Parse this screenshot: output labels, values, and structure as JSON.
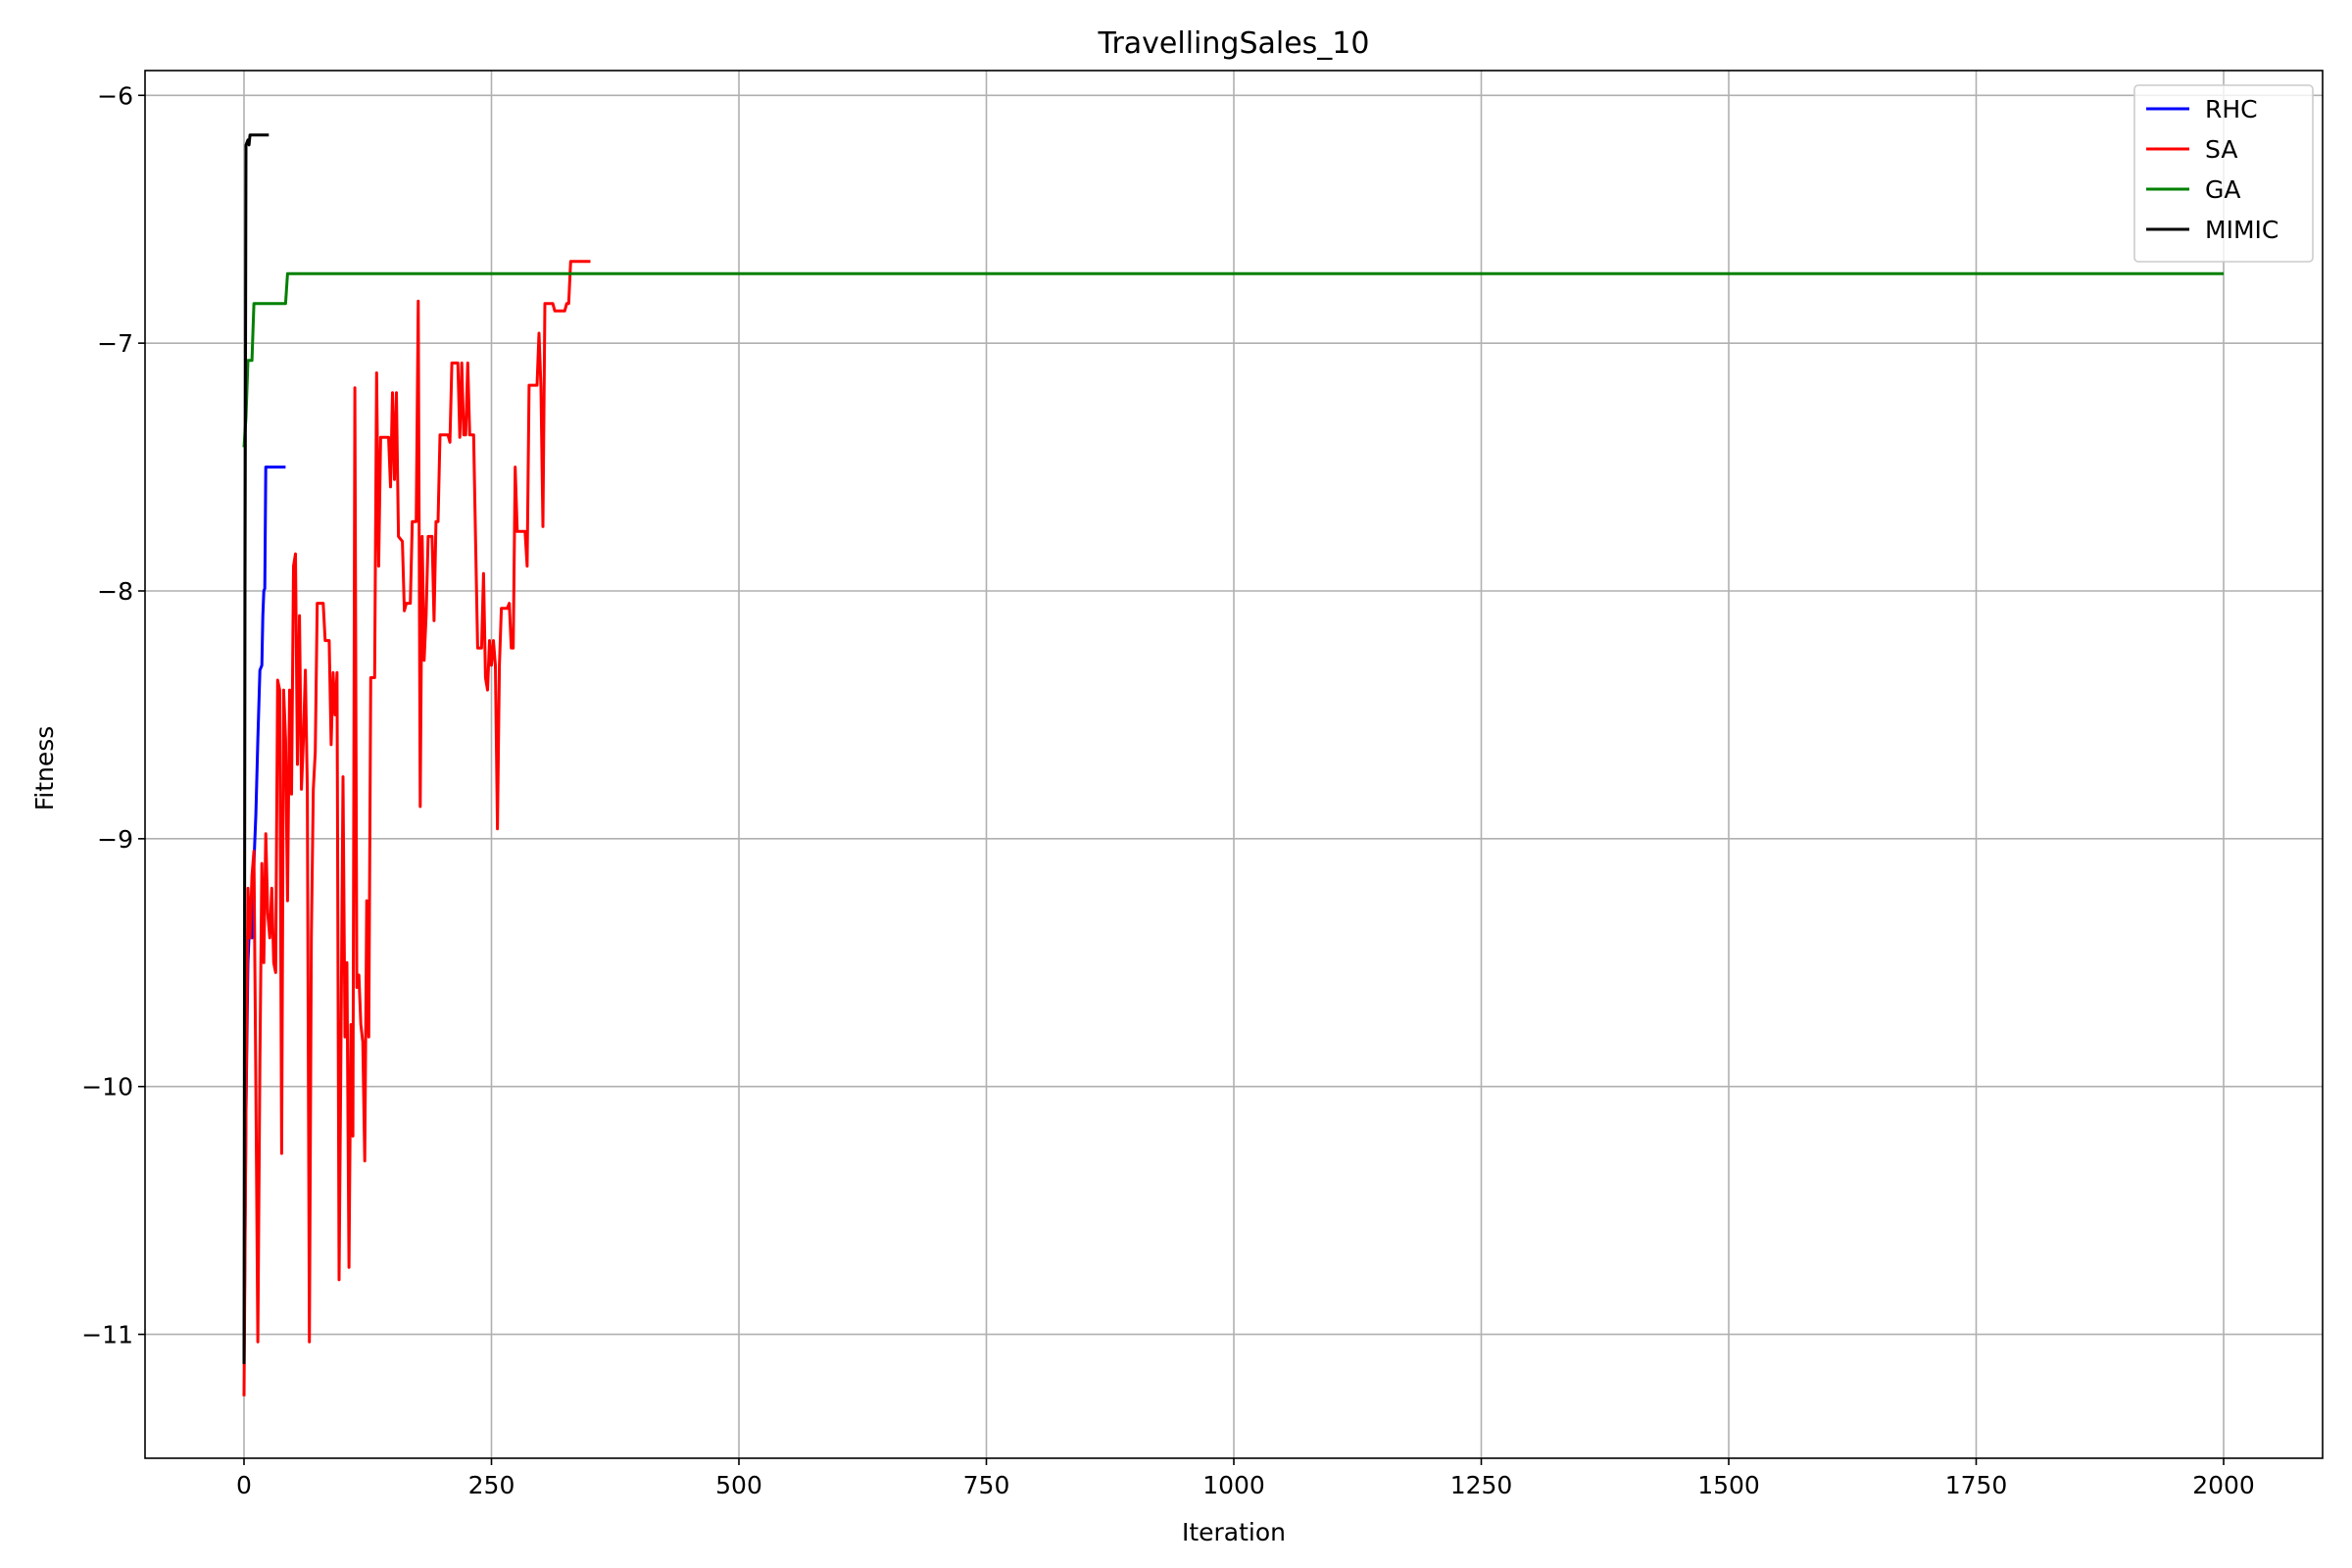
{
  "chart_data": {
    "type": "line",
    "title": "TravellingSales_10",
    "xlabel": "Iteration",
    "ylabel": "Fitness",
    "xlim": [
      -100,
      2100
    ],
    "ylim": [
      -11.5,
      -5.9
    ],
    "xticks": [
      0,
      250,
      500,
      750,
      1000,
      1250,
      1500,
      1750,
      2000
    ],
    "yticks": [
      -11,
      -10,
      -9,
      -8,
      -7,
      -6
    ],
    "grid": true,
    "legend_position": "top-right",
    "series": [
      {
        "name": "RHC",
        "color": "#0000ff",
        "points": [
          [
            0,
            -11.1
          ],
          [
            2,
            -10.1
          ],
          [
            4,
            -9.5
          ],
          [
            6,
            -9.3
          ],
          [
            8,
            -9.4
          ],
          [
            10,
            -9.1
          ],
          [
            12,
            -8.9
          ],
          [
            14,
            -8.6
          ],
          [
            16,
            -8.32
          ],
          [
            18,
            -8.3
          ],
          [
            19,
            -8.1
          ],
          [
            20,
            -8.0
          ],
          [
            21,
            -7.99
          ],
          [
            22,
            -7.5
          ],
          [
            30,
            -7.5
          ],
          [
            35,
            -7.5
          ],
          [
            42,
            -7.5
          ]
        ]
      },
      {
        "name": "SA",
        "color": "#ff0000",
        "points": [
          [
            0,
            -11.25
          ],
          [
            2,
            -10.1
          ],
          [
            4,
            -9.2
          ],
          [
            6,
            -9.4
          ],
          [
            8,
            -9.15
          ],
          [
            10,
            -9.05
          ],
          [
            12,
            -10.0
          ],
          [
            14,
            -11.03
          ],
          [
            16,
            -9.9
          ],
          [
            18,
            -9.1
          ],
          [
            20,
            -9.5
          ],
          [
            22,
            -8.98
          ],
          [
            24,
            -9.3
          ],
          [
            26,
            -9.4
          ],
          [
            28,
            -9.2
          ],
          [
            30,
            -9.5
          ],
          [
            32,
            -9.54
          ],
          [
            34,
            -8.36
          ],
          [
            36,
            -8.4
          ],
          [
            38,
            -10.27
          ],
          [
            40,
            -8.4
          ],
          [
            42,
            -8.6
          ],
          [
            44,
            -9.25
          ],
          [
            46,
            -8.4
          ],
          [
            48,
            -8.82
          ],
          [
            50,
            -7.9
          ],
          [
            52,
            -7.85
          ],
          [
            54,
            -8.7
          ],
          [
            56,
            -8.1
          ],
          [
            58,
            -8.8
          ],
          [
            60,
            -8.6
          ],
          [
            62,
            -8.32
          ],
          [
            64,
            -8.8
          ],
          [
            66,
            -11.03
          ],
          [
            68,
            -9.4
          ],
          [
            70,
            -8.8
          ],
          [
            72,
            -8.65
          ],
          [
            74,
            -8.05
          ],
          [
            80,
            -8.05
          ],
          [
            82,
            -8.2
          ],
          [
            86,
            -8.2
          ],
          [
            88,
            -8.62
          ],
          [
            90,
            -8.33
          ],
          [
            92,
            -8.5
          ],
          [
            94,
            -8.33
          ],
          [
            96,
            -10.78
          ],
          [
            98,
            -9.8
          ],
          [
            100,
            -8.75
          ],
          [
            102,
            -9.8
          ],
          [
            104,
            -9.5
          ],
          [
            106,
            -10.73
          ],
          [
            108,
            -9.75
          ],
          [
            110,
            -10.2
          ],
          [
            112,
            -7.18
          ],
          [
            114,
            -9.6
          ],
          [
            116,
            -9.55
          ],
          [
            118,
            -9.75
          ],
          [
            120,
            -9.82
          ],
          [
            122,
            -10.3
          ],
          [
            124,
            -9.25
          ],
          [
            126,
            -9.8
          ],
          [
            128,
            -8.35
          ],
          [
            132,
            -8.35
          ],
          [
            134,
            -7.12
          ],
          [
            136,
            -7.9
          ],
          [
            138,
            -7.38
          ],
          [
            146,
            -7.38
          ],
          [
            148,
            -7.58
          ],
          [
            150,
            -7.2
          ],
          [
            152,
            -7.55
          ],
          [
            154,
            -7.2
          ],
          [
            156,
            -7.78
          ],
          [
            160,
            -7.8
          ],
          [
            162,
            -8.08
          ],
          [
            164,
            -8.05
          ],
          [
            168,
            -8.05
          ],
          [
            170,
            -7.72
          ],
          [
            174,
            -7.72
          ],
          [
            176,
            -6.83
          ],
          [
            178,
            -8.87
          ],
          [
            180,
            -7.78
          ],
          [
            182,
            -8.28
          ],
          [
            184,
            -8.1
          ],
          [
            186,
            -7.78
          ],
          [
            190,
            -7.78
          ],
          [
            192,
            -8.12
          ],
          [
            194,
            -7.72
          ],
          [
            196,
            -7.72
          ],
          [
            198,
            -7.37
          ],
          [
            206,
            -7.37
          ],
          [
            208,
            -7.4
          ],
          [
            210,
            -7.08
          ],
          [
            216,
            -7.08
          ],
          [
            218,
            -7.38
          ],
          [
            220,
            -7.08
          ],
          [
            222,
            -7.37
          ],
          [
            224,
            -7.37
          ],
          [
            226,
            -7.08
          ],
          [
            228,
            -7.37
          ],
          [
            232,
            -7.37
          ],
          [
            234,
            -7.8
          ],
          [
            236,
            -8.23
          ],
          [
            240,
            -8.23
          ],
          [
            242,
            -7.93
          ],
          [
            244,
            -8.35
          ],
          [
            246,
            -8.4
          ],
          [
            248,
            -8.2
          ],
          [
            250,
            -8.3
          ],
          [
            252,
            -8.2
          ],
          [
            254,
            -8.3
          ],
          [
            256,
            -8.96
          ],
          [
            258,
            -8.3
          ],
          [
            260,
            -8.07
          ],
          [
            266,
            -8.07
          ],
          [
            268,
            -8.05
          ],
          [
            270,
            -8.23
          ],
          [
            272,
            -8.23
          ],
          [
            274,
            -7.5
          ],
          [
            276,
            -7.76
          ],
          [
            284,
            -7.76
          ],
          [
            286,
            -7.9
          ],
          [
            288,
            -7.17
          ],
          [
            296,
            -7.17
          ],
          [
            298,
            -6.96
          ],
          [
            300,
            -7.18
          ],
          [
            302,
            -7.74
          ],
          [
            304,
            -6.84
          ],
          [
            312,
            -6.84
          ],
          [
            314,
            -6.87
          ],
          [
            324,
            -6.87
          ],
          [
            326,
            -6.84
          ],
          [
            328,
            -6.84
          ],
          [
            330,
            -6.67
          ],
          [
            350,
            -6.67
          ]
        ]
      },
      {
        "name": "GA",
        "color": "#008000",
        "points": [
          [
            0,
            -7.42
          ],
          [
            2,
            -7.3
          ],
          [
            4,
            -7.07
          ],
          [
            8,
            -7.07
          ],
          [
            10,
            -6.84
          ],
          [
            20,
            -6.84
          ],
          [
            42,
            -6.84
          ],
          [
            44,
            -6.72
          ],
          [
            100,
            -6.72
          ],
          [
            500,
            -6.72
          ],
          [
            1000,
            -6.72
          ],
          [
            1500,
            -6.72
          ],
          [
            2000,
            -6.72
          ]
        ]
      },
      {
        "name": "MIMIC",
        "color": "#000000",
        "points": [
          [
            0,
            -11.12
          ],
          [
            1,
            -8.0
          ],
          [
            2,
            -6.2
          ],
          [
            4,
            -6.18
          ],
          [
            5,
            -6.2
          ],
          [
            6,
            -6.16
          ],
          [
            10,
            -6.16
          ],
          [
            15,
            -6.16
          ],
          [
            25,
            -6.16
          ]
        ]
      }
    ]
  }
}
